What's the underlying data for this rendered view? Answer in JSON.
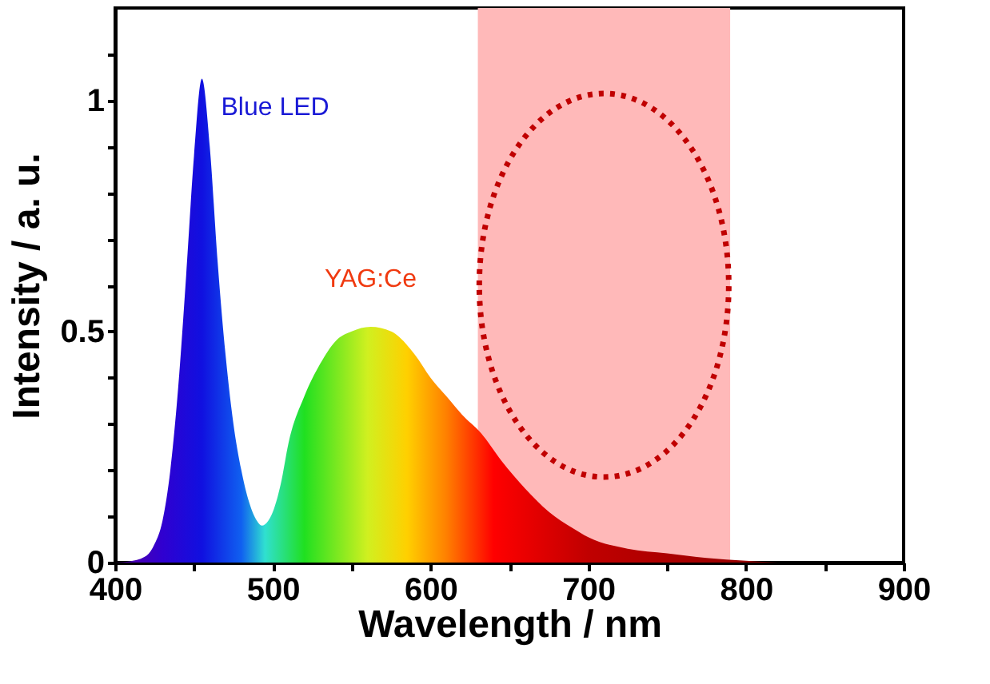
{
  "chart_data": {
    "type": "area",
    "xlabel": "Wavelength / nm",
    "ylabel": "Intensity / a. u.",
    "xlim": [
      400,
      900
    ],
    "ylim": [
      0,
      1.2
    ],
    "xticks": [
      400,
      {
        "value": 450,
        "label": null
      },
      500,
      {
        "value": 550,
        "label": null
      },
      600,
      {
        "value": 650,
        "label": null
      },
      700,
      {
        "value": 750,
        "label": null
      },
      800,
      {
        "value": 850,
        "label": null
      },
      900
    ],
    "yticks": [
      0,
      {
        "value": 0.1,
        "label": null
      },
      {
        "value": 0.2,
        "label": null
      },
      {
        "value": 0.3,
        "label": null
      },
      {
        "value": 0.4,
        "label": null
      },
      0.5,
      {
        "value": 0.6,
        "label": null
      },
      {
        "value": 0.7,
        "label": null
      },
      {
        "value": 0.8,
        "label": null
      },
      {
        "value": 0.9,
        "label": null
      },
      1,
      {
        "value": 1.1,
        "label": null
      }
    ],
    "x": [
      400,
      410,
      420,
      425,
      430,
      435,
      440,
      445,
      450,
      455,
      460,
      465,
      470,
      475,
      480,
      485,
      490,
      493,
      497,
      500,
      505,
      510,
      520,
      530,
      540,
      550,
      562,
      575,
      590,
      600,
      610,
      620,
      632,
      645,
      660,
      675,
      690,
      700,
      725,
      750,
      775,
      800,
      820
    ],
    "series": [
      {
        "values": [
          0,
          0.003,
          0.015,
          0.04,
          0.09,
          0.2,
          0.38,
          0.62,
          0.88,
          1.047,
          0.9,
          0.65,
          0.45,
          0.3,
          0.2,
          0.13,
          0.09,
          0.08,
          0.09,
          0.11,
          0.17,
          0.26,
          0.36,
          0.43,
          0.48,
          0.5,
          0.51,
          0.5,
          0.45,
          0.4,
          0.36,
          0.32,
          0.28,
          0.22,
          0.16,
          0.11,
          0.075,
          0.055,
          0.03,
          0.02,
          0.01,
          0.004,
          0
        ]
      }
    ],
    "bands": [
      {
        "axis": "x",
        "from": 630,
        "to": 790,
        "color": "#ffb9b9"
      }
    ],
    "annotations": [
      "Blue LED",
      "YAG:Ce"
    ]
  }
}
